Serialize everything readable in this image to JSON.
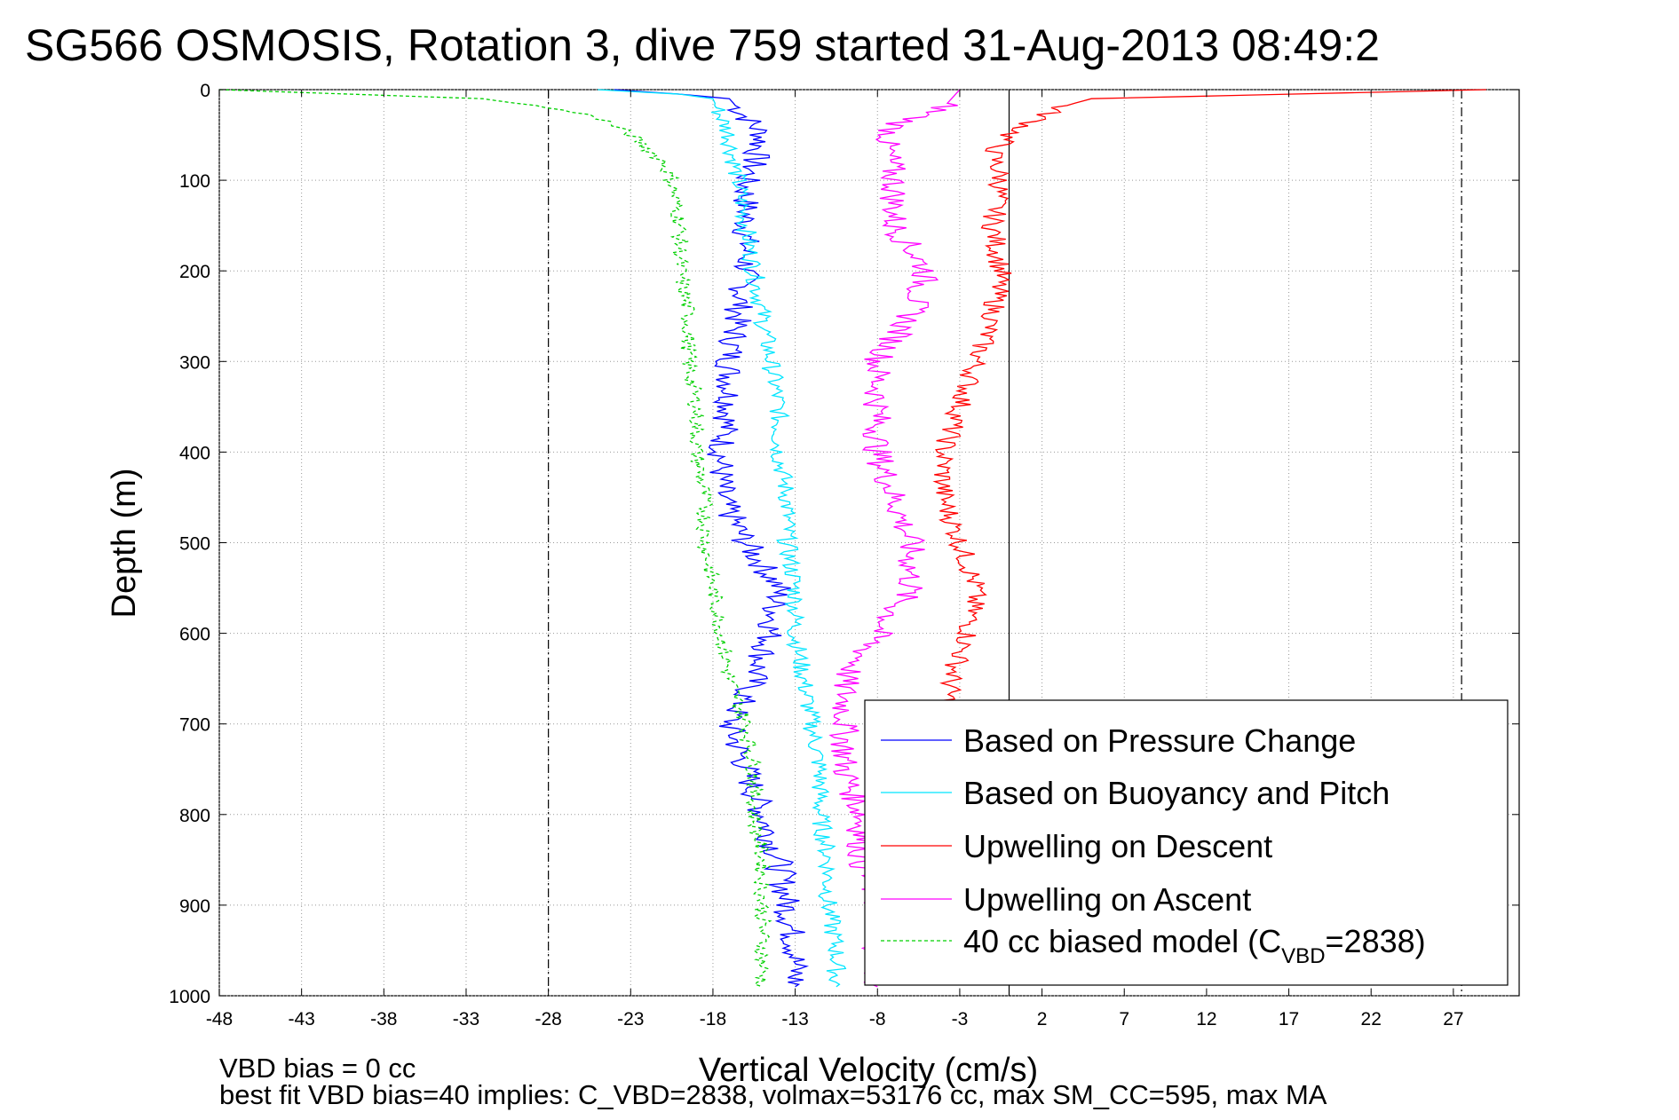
{
  "chart_data": {
    "type": "line",
    "title": "SG566 OSMOSIS, Rotation 3, dive 759 started 31-Aug-2013 08:49:2",
    "xlabel": "Vertical Velocity (cm/s)",
    "ylabel": "Depth (m)",
    "xlim": [
      -48,
      31
    ],
    "ylim": [
      0,
      1000
    ],
    "y_reversed": true,
    "x_ticks": [
      -48,
      -43,
      -38,
      -33,
      -28,
      -23,
      -18,
      -13,
      -8,
      -3,
      2,
      7,
      12,
      17,
      22,
      27
    ],
    "y_ticks": [
      0,
      100,
      200,
      300,
      400,
      500,
      600,
      700,
      800,
      900,
      1000
    ],
    "grid": true,
    "legend_position": "lower-right",
    "reference_lines": [
      {
        "x": -28,
        "style": "dash-dot"
      },
      {
        "x": 0,
        "style": "solid"
      },
      {
        "x": 27.5,
        "style": "dash-dot"
      }
    ],
    "notes": [
      "VBD bias = 0 cc",
      "best fit VBD bias=40 implies: C_VBD=2838, volmax=53176 cc, max SM_CC=595, max MA"
    ],
    "series": [
      {
        "name": "Based on Pressure Change",
        "color": "#0000ff",
        "style": "solid",
        "depth": [
          0,
          5,
          10,
          30,
          50,
          80,
          100,
          150,
          200,
          250,
          300,
          350,
          400,
          450,
          500,
          550,
          600,
          650,
          700,
          750,
          800,
          850,
          900,
          950,
          990
        ],
        "velocity": [
          -24,
          -20,
          -17,
          -16,
          -15,
          -15.5,
          -16,
          -16,
          -16,
          -16.5,
          -17,
          -17,
          -17.5,
          -17.5,
          -16,
          -14,
          -14.5,
          -15.5,
          -17,
          -16,
          -15,
          -14,
          -13.5,
          -13,
          -13
        ]
      },
      {
        "name": "Based on Buoyancy and Pitch",
        "color": "#00e5ff",
        "style": "solid",
        "depth": [
          0,
          5,
          10,
          30,
          50,
          100,
          150,
          200,
          250,
          300,
          350,
          400,
          450,
          500,
          550,
          600,
          650,
          700,
          750,
          800,
          850,
          900,
          950,
          990
        ],
        "velocity": [
          -25,
          -20,
          -18,
          -17.5,
          -17,
          -16.5,
          -16,
          -15.5,
          -15,
          -14.5,
          -14,
          -14,
          -13.5,
          -13.5,
          -13,
          -13,
          -12.5,
          -12,
          -11.5,
          -11.5,
          -11,
          -11,
          -10.5,
          -10.5
        ]
      },
      {
        "name": "Upwelling on Descent",
        "color": "#ff0000",
        "style": "solid",
        "depth": [
          0,
          10,
          20,
          40,
          50,
          70,
          100,
          150,
          200,
          250,
          300,
          350,
          400,
          450,
          500,
          550,
          600,
          650,
          700
        ],
        "velocity": [
          29,
          5,
          3,
          1,
          0,
          -1,
          -0.5,
          -1,
          -0.5,
          -1,
          -2,
          -3,
          -4,
          -4,
          -3,
          -2,
          -2.5,
          -3.5,
          -4
        ]
      },
      {
        "name": "Upwelling on Ascent",
        "color": "#ff00ff",
        "style": "solid",
        "depth": [
          0,
          20,
          40,
          60,
          100,
          150,
          200,
          250,
          300,
          350,
          400,
          450,
          500,
          550,
          600,
          650,
          700,
          750,
          800,
          850,
          900,
          990
        ],
        "velocity": [
          -3,
          -4,
          -7,
          -7.5,
          -7,
          -7,
          -5,
          -6,
          -8,
          -8,
          -8,
          -7,
          -6,
          -6,
          -8,
          -10,
          -10,
          -10,
          -9,
          -9,
          -8,
          -8
        ]
      },
      {
        "name": "40 cc biased model (C_VBD=2838)",
        "color": "#00d000",
        "style": "dashed",
        "depth": [
          0,
          5,
          10,
          20,
          30,
          50,
          80,
          100,
          150,
          200,
          250,
          300,
          350,
          400,
          450,
          500,
          550,
          600,
          650,
          700,
          750,
          800,
          850,
          900,
          950,
          990
        ],
        "velocity": [
          -48,
          -40,
          -32,
          -28,
          -25,
          -23,
          -21,
          -20.5,
          -20,
          -20,
          -19.5,
          -19.5,
          -19,
          -19,
          -18.5,
          -18.5,
          -18,
          -17.5,
          -17,
          -16,
          -15.5,
          -15.5,
          -15,
          -15,
          -15,
          -15
        ]
      }
    ]
  }
}
